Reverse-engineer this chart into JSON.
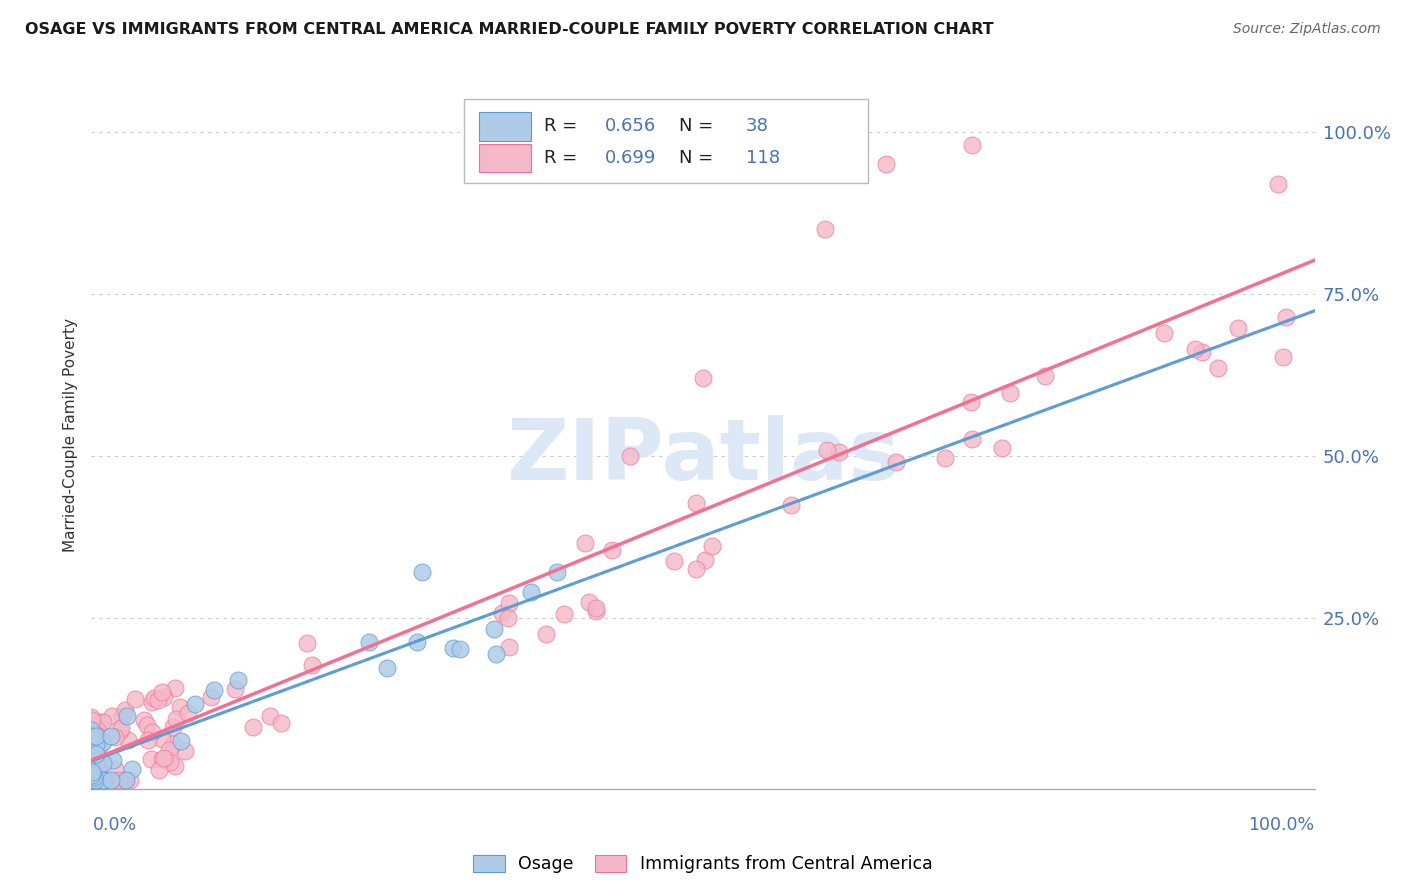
{
  "title": "OSAGE VS IMMIGRANTS FROM CENTRAL AMERICA MARRIED-COUPLE FAMILY POVERTY CORRELATION CHART",
  "source": "Source: ZipAtlas.com",
  "ylabel": "Married-Couple Family Poverty",
  "osage_R": "0.656",
  "osage_N": "38",
  "immigrants_R": "0.699",
  "immigrants_N": "118",
  "osage_color": "#aecce8",
  "immigrants_color": "#f4b8c8",
  "osage_line_color": "#5b9bd5",
  "immigrants_line_color": "#f47090",
  "background_color": "#ffffff",
  "blue_label_color": "#4472c4",
  "title_color": "#1a1a1a",
  "grid_color": "#cccccc",
  "y_ticks": [
    0.25,
    0.5,
    0.75,
    1.0
  ],
  "y_tick_labels": [
    "25.0%",
    "50.0%",
    "75.0%",
    "100.0%"
  ],
  "watermark_color": "#dce8f5",
  "watermark_text": "ZIPatlas"
}
